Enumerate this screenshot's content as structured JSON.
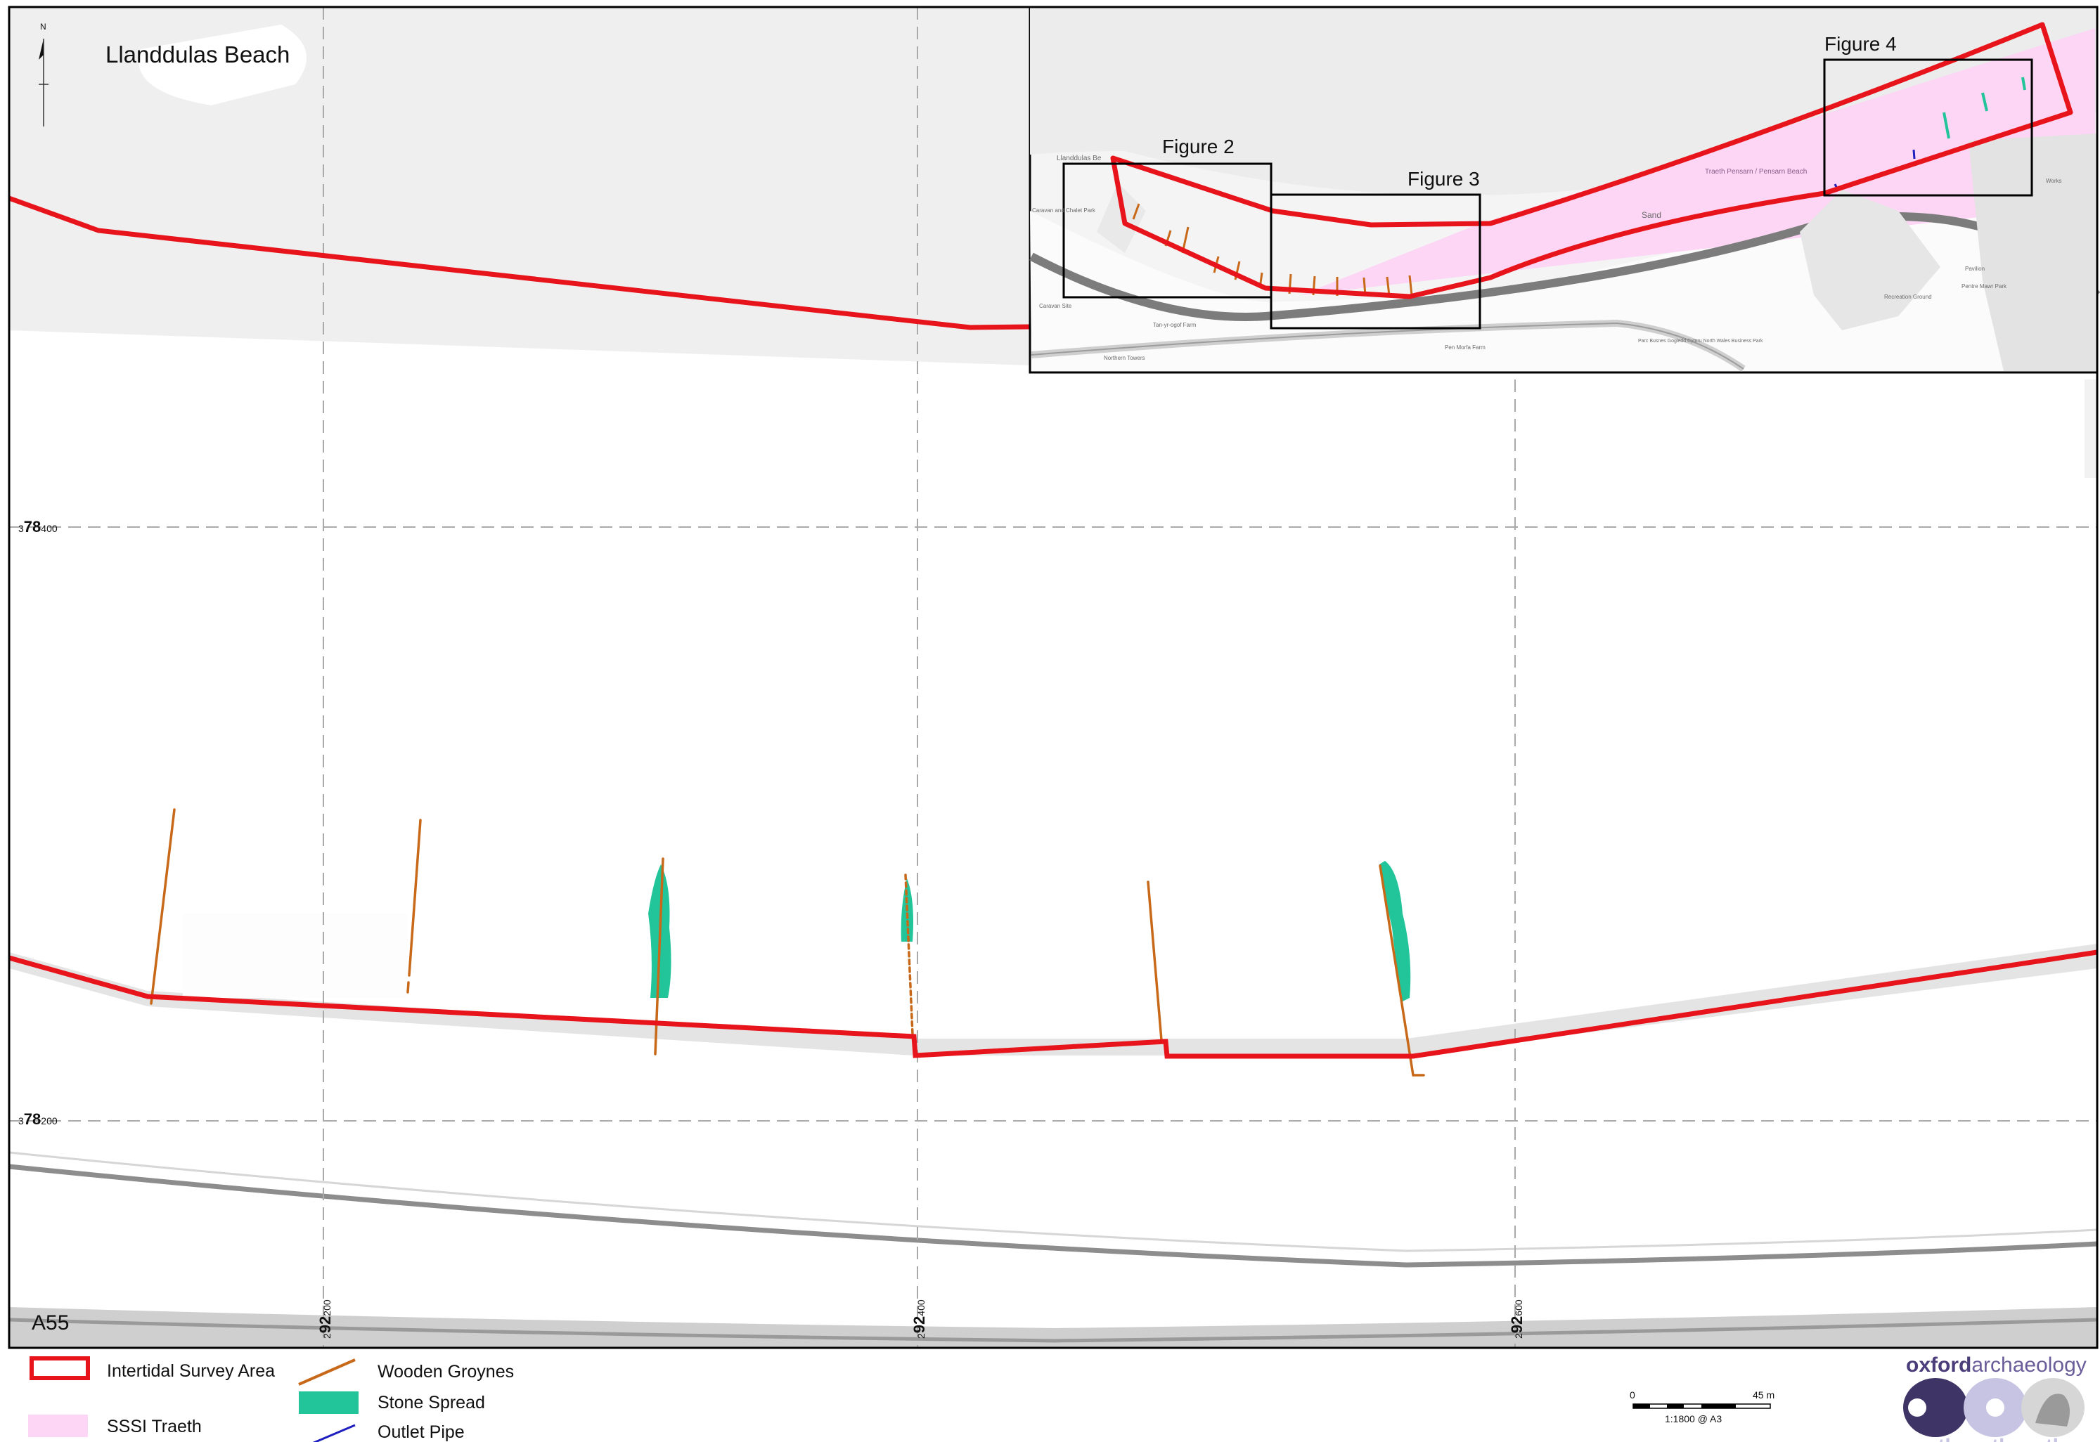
{
  "map": {
    "title": "Llanddulas Beach",
    "north_label": "N",
    "road_label": "A55",
    "grid": {
      "northings": [
        {
          "prefix": "3",
          "major": "78",
          "minor": "400"
        },
        {
          "prefix": "3",
          "major": "78",
          "minor": "200"
        }
      ],
      "eastings": [
        {
          "prefix": "2",
          "major": "92",
          "minor": "200"
        },
        {
          "prefix": "2",
          "major": "92",
          "minor": "400"
        },
        {
          "prefix": "2",
          "major": "92",
          "minor": "600"
        }
      ]
    }
  },
  "inset": {
    "figure_labels": [
      "Figure 2",
      "Figure 3",
      "Figure 4"
    ],
    "place_labels": {
      "llanddulas": "Llanddulas Be",
      "sand": "Sand",
      "traeth": "Traeth Pensarn / Pensarn Beach",
      "caravan_site": "Caravan Site",
      "caravan_park": "Caravan and Chalet Park",
      "tan_yr_ogof": "Tan-yr-ogof Farm",
      "northern_towers": "Northern Towers",
      "pen_morfa": "Pen Morfa Farm",
      "business_park": "Parc Busnes Gogledd Cymru North Wales Business Park",
      "pentre_mawr": "Pentre Mawr Park",
      "recreation_ground": "Recreation Ground",
      "pavilion": "Pavilion",
      "works": "Works"
    }
  },
  "legend": {
    "items": [
      {
        "label": "Intertidal Survey Area",
        "color": "#e8141b"
      },
      {
        "label": "SSSI Traeth",
        "color": "#fcd6f4"
      },
      {
        "label": "Wooden Groynes",
        "color": "#c8691a"
      },
      {
        "label": "Stone Spread",
        "color": "#22c59a"
      },
      {
        "label": "Outlet Pipe",
        "color": "#1f1fbf"
      }
    ]
  },
  "scale_bar": {
    "start": "0",
    "end": "45 m",
    "ratio": "1:1800 @ A3"
  },
  "logo": {
    "text_part1": "oxford",
    "text_part2": "archaeology",
    "sub_text": "northnorthnorth"
  }
}
